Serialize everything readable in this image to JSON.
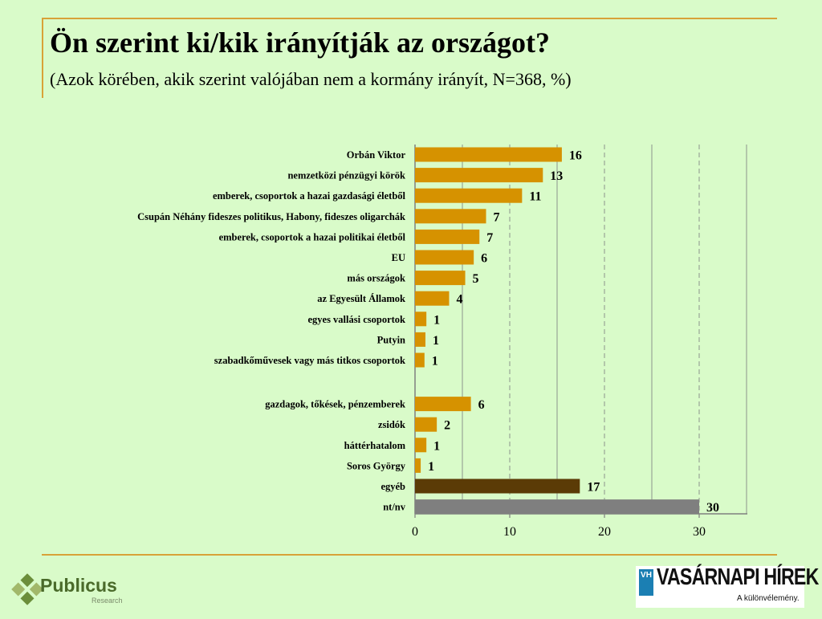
{
  "title": "Ön szerint ki/kik irányítják az országot?",
  "subtitle": "(Azok körében, akik szerint valójában nem a kormány irányít, N=368, %)",
  "colors": {
    "gold": "#d69200",
    "brown": "#5b3b06",
    "gray": "#7f7f7f",
    "accent_line": "#d8a238"
  },
  "chart_data": {
    "type": "bar",
    "orientation": "horizontal",
    "categories": [
      "Orbán Viktor",
      "nemzetközi pénzügyi körök",
      "emberek, csoportok a hazai gazdasági életből",
      "Csupán Néhány fideszes politikus, Habony, fideszes oligarchák",
      "emberek, csoportok a hazai politikai életből",
      "EU",
      "más országok",
      "az Egyesült Államok",
      "egyes vallási csoportok",
      "Putyin",
      "szabadkőművesek vagy más titkos csoportok",
      "gazdagok, tőkések, pénzemberek",
      "zsidók",
      "háttérhatalom",
      "Soros György",
      "egyéb",
      "nt/nv"
    ],
    "values": [
      16,
      13,
      11,
      7,
      7,
      6,
      5,
      4,
      1,
      1,
      1,
      6,
      2,
      1,
      1,
      17,
      30
    ],
    "display_values": [
      15.5,
      13.5,
      11.3,
      7.5,
      6.8,
      6.2,
      5.3,
      3.6,
      1.2,
      1.1,
      1.0,
      5.9,
      2.3,
      1.2,
      0.6,
      17.4,
      30.0
    ],
    "bar_colors": [
      "gold",
      "gold",
      "gold",
      "gold",
      "gold",
      "gold",
      "gold",
      "gold",
      "gold",
      "gold",
      "gold",
      "gold",
      "gold",
      "gold",
      "gold",
      "brown",
      "gray"
    ],
    "group_break_after": 10,
    "xlim": [
      0,
      35
    ],
    "xticks": [
      0,
      10,
      20,
      30
    ],
    "grid": "vertical lines every 5 (dashed at 10, 20, 30)",
    "xlabel": "",
    "ylabel": ""
  },
  "logos": {
    "publicus_name": "Publicus",
    "publicus_sub": "Research",
    "vh_mark": "VH",
    "vh_name": "VASÁRNAPI HÍREK",
    "vh_slogan": "A különvélemény."
  }
}
